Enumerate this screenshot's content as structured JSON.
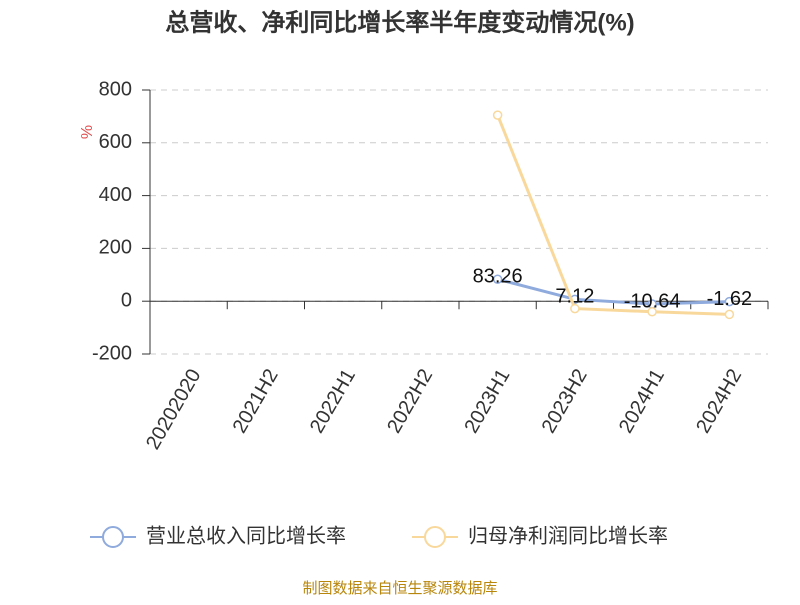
{
  "chart_data": {
    "type": "line",
    "title": "总营收、净利同比增长率半年度变动情况(%)",
    "y_label": "%",
    "categories": [
      "20202020",
      "2021H2",
      "2022H1",
      "2022H2",
      "2023H1",
      "2023H2",
      "2024H1",
      "2024H2"
    ],
    "series": [
      {
        "name": "营业总收入同比增长率",
        "color": "#8faadc",
        "values": [
          null,
          null,
          null,
          null,
          83.26,
          7.12,
          -10.64,
          -1.62
        ],
        "show_labels": true
      },
      {
        "name": "归母净利润同比增长率",
        "color": "#f9d89c",
        "values": [
          null,
          null,
          null,
          null,
          705,
          -28,
          -40,
          -50
        ],
        "show_labels": false
      }
    ],
    "ylim": [
      -200,
      800
    ],
    "yticks": [
      -200,
      0,
      200,
      400,
      600,
      800
    ],
    "grid": true,
    "legend": "bottom",
    "source": "制图数据来自恒生聚源数据库"
  }
}
